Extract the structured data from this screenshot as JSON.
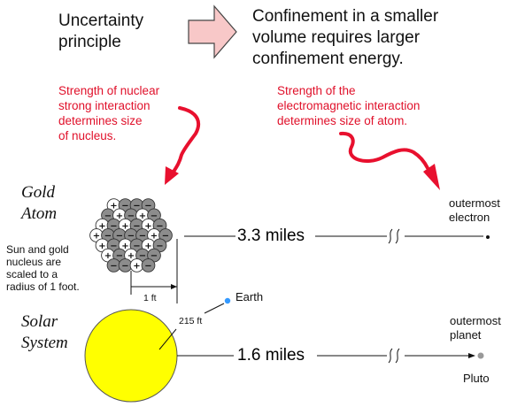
{
  "top": {
    "left_text": "Uncertainty\nprinciple",
    "right_text": "Confinement in a smaller\nvolume requires larger\nconfinement energy."
  },
  "annotations": {
    "nuclear": "Strength of nuclear\nstrong interaction\ndetermines size\nof nucleus.",
    "electromagnetic": "Strength of the\nelectromagnetic interaction\ndetermines size  of atom."
  },
  "gold_atom": {
    "title": "Gold\nAtom",
    "scale_note": "Sun and gold\nnucleus are\nscaled to a\nradius of 1 foot.",
    "distance": "3.3 miles",
    "end_label": "outermost\nelectron",
    "radius_label": "1 ft",
    "proton_symbol": "+",
    "neutron_symbol": "−"
  },
  "solar_system": {
    "title": "Solar\nSystem",
    "distance": "1.6 miles",
    "earth_label": "Earth",
    "earth_distance": "215 ft",
    "end_label": "outermost\nplanet",
    "pluto_label": "Pluto"
  },
  "colors": {
    "arrow_fill": "#f8c8c8",
    "red_text": "#e0102a",
    "sun": "#ffff00",
    "earth": "#3399ff",
    "pluto": "#999999",
    "neutron": "#8c8c8c",
    "proton": "#ffffff"
  }
}
